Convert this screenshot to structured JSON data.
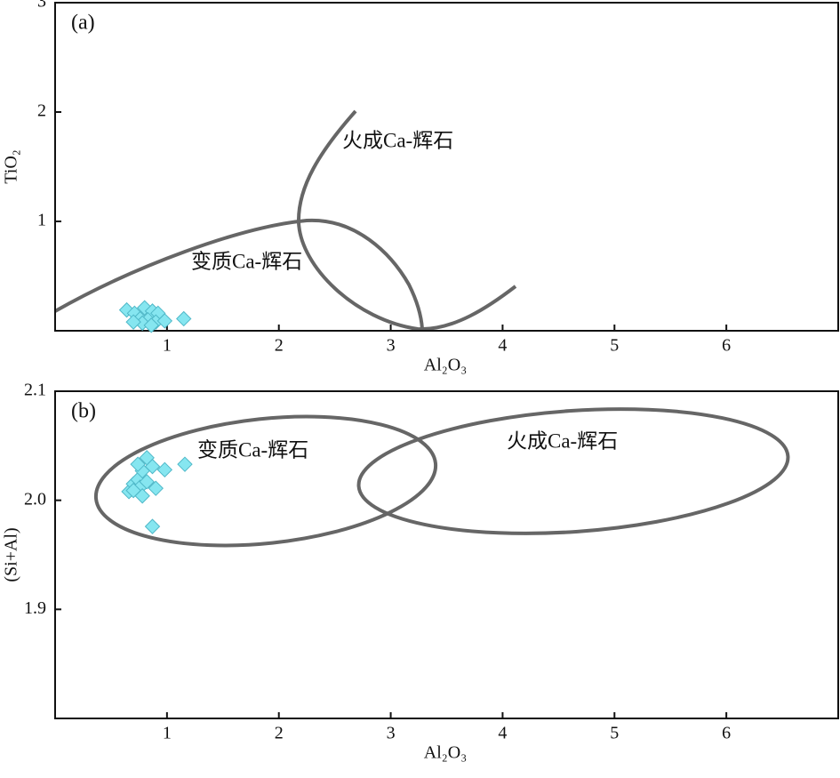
{
  "chart_data": [
    {
      "type": "scatter",
      "panel_label": "(a)",
      "x_label": "Al₂O₃",
      "y_label": "TiO₂",
      "x": [
        0.64,
        0.71,
        0.8,
        0.87,
        0.92,
        0.76,
        0.83,
        0.9,
        0.98,
        1.15,
        0.78,
        0.86,
        0.7
      ],
      "values": [
        0.19,
        0.16,
        0.21,
        0.18,
        0.16,
        0.11,
        0.1,
        0.08,
        0.09,
        0.11,
        0.07,
        0.05,
        0.08
      ],
      "color": "#86e6f0",
      "xlim": [
        0,
        7
      ],
      "xticks": [
        1,
        2,
        3,
        4,
        5,
        6
      ],
      "ylim": [
        0,
        3
      ],
      "yticks": [
        1,
        2,
        3
      ],
      "annotations": [
        "火成Ca-辉石",
        "变质Ca-辉石"
      ]
    },
    {
      "type": "scatter",
      "panel_label": "(b)",
      "x_label": "Al₂O₃",
      "y_label": "(Si+Al)",
      "x": [
        0.66,
        0.7,
        0.74,
        0.82,
        0.87,
        0.98,
        1.16,
        0.78,
        0.76,
        0.82,
        0.9,
        0.78,
        0.87,
        0.74,
        0.7
      ],
      "values": [
        2.008,
        2.015,
        2.019,
        2.039,
        2.031,
        2.028,
        2.033,
        2.027,
        2.012,
        2.017,
        2.011,
        2.004,
        1.976,
        2.033,
        2.009
      ],
      "color": "#86e6f0",
      "xlim": [
        0,
        7
      ],
      "xticks": [
        1,
        2,
        3,
        4,
        5,
        6
      ],
      "ylim": [
        1.8,
        2.1
      ],
      "yticks": [
        1.9,
        {
          "value": 2,
          "label": "2.0"
        },
        2.1
      ],
      "annotations": [
        "变质Ca-辉石",
        "火成Ca-辉石"
      ]
    }
  ]
}
